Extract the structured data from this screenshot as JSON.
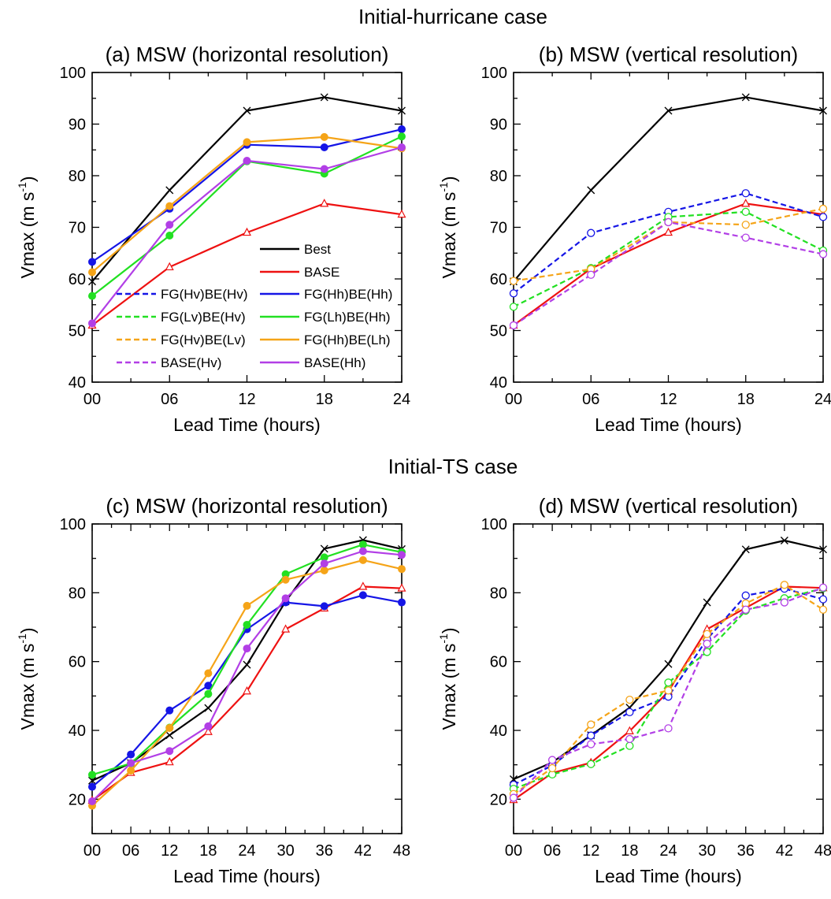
{
  "sections": [
    {
      "title": "Initial-hurricane case"
    },
    {
      "title": "Initial-TS case"
    }
  ],
  "colors": {
    "best": "#000000",
    "base": "#ee1111",
    "blue": "#1515e6",
    "green": "#22e022",
    "orange": "#f5a418",
    "purple": "#b23fe6"
  },
  "legend": {
    "entries": [
      {
        "label": "Best",
        "color": "#000000",
        "dash": false
      },
      {
        "label": "BASE",
        "color": "#ee1111",
        "dash": false
      },
      {
        "label": "FG(Hv)BE(Hv)",
        "color": "#1515e6",
        "dash": true
      },
      {
        "label": "FG(Hh)BE(Hh)",
        "color": "#1515e6",
        "dash": false
      },
      {
        "label": "FG(Lv)BE(Hv)",
        "color": "#22e022",
        "dash": true
      },
      {
        "label": "FG(Lh)BE(Hh)",
        "color": "#22e022",
        "dash": false
      },
      {
        "label": "FG(Hv)BE(Lv)",
        "color": "#f5a418",
        "dash": true
      },
      {
        "label": "FG(Hh)BE(Lh)",
        "color": "#f5a418",
        "dash": false
      },
      {
        "label": "BASE(Hv)",
        "color": "#b23fe6",
        "dash": true
      },
      {
        "label": "BASE(Hh)",
        "color": "#b23fe6",
        "dash": false
      }
    ]
  },
  "chart_data": [
    {
      "type": "line",
      "title": "(a) MSW (horizontal resolution)",
      "xlabel": "Lead Time (hours)",
      "ylabel": "Vmax (m s-1)",
      "ylim": [
        40,
        100
      ],
      "yticks": [
        40,
        50,
        60,
        70,
        80,
        90,
        100
      ],
      "x": [
        0,
        6,
        12,
        18,
        24
      ],
      "xticks": [
        "00",
        "06",
        "12",
        "18",
        "24"
      ],
      "series": [
        {
          "name": "Best",
          "color": "#000000",
          "dash": false,
          "marker": "x",
          "values": [
            59.5,
            77.2,
            92.6,
            95.2,
            92.6
          ]
        },
        {
          "name": "BASE",
          "color": "#ee1111",
          "dash": false,
          "marker": "triangle",
          "values": [
            51.0,
            62.3,
            69.0,
            74.6,
            72.5
          ]
        },
        {
          "name": "FG(Hh)BE(Hh)",
          "color": "#1515e6",
          "dash": false,
          "marker": "dot",
          "values": [
            63.3,
            73.6,
            86.0,
            85.5,
            89.0
          ]
        },
        {
          "name": "FG(Lh)BE(Hh)",
          "color": "#22e022",
          "dash": false,
          "marker": "dot",
          "values": [
            56.7,
            68.4,
            82.8,
            80.4,
            87.6
          ]
        },
        {
          "name": "FG(Hh)BE(Lh)",
          "color": "#f5a418",
          "dash": false,
          "marker": "dot",
          "values": [
            61.3,
            74.1,
            86.5,
            87.5,
            85.3
          ]
        },
        {
          "name": "BASE(Hh)",
          "color": "#b23fe6",
          "dash": false,
          "marker": "dot",
          "values": [
            51.4,
            70.5,
            82.9,
            81.3,
            85.5
          ]
        }
      ]
    },
    {
      "type": "line",
      "title": "(b) MSW (vertical resolution)",
      "xlabel": "Lead Time (hours)",
      "ylabel": "Vmax (m s-1)",
      "ylim": [
        40,
        100
      ],
      "yticks": [
        40,
        50,
        60,
        70,
        80,
        90,
        100
      ],
      "x": [
        0,
        6,
        12,
        18,
        24
      ],
      "xticks": [
        "00",
        "06",
        "12",
        "18",
        "24"
      ],
      "series": [
        {
          "name": "Best",
          "color": "#000000",
          "dash": false,
          "marker": "x",
          "values": [
            59.5,
            77.2,
            92.6,
            95.2,
            92.6
          ]
        },
        {
          "name": "BASE",
          "color": "#ee1111",
          "dash": false,
          "marker": "triangle",
          "values": [
            51.0,
            62.0,
            69.0,
            74.6,
            72.5
          ]
        },
        {
          "name": "FG(Hv)BE(Hv)",
          "color": "#1515e6",
          "dash": true,
          "marker": "circle",
          "values": [
            57.2,
            68.9,
            73.0,
            76.6,
            72.0
          ]
        },
        {
          "name": "FG(Lv)BE(Hv)",
          "color": "#22e022",
          "dash": true,
          "marker": "circle",
          "values": [
            54.6,
            62.1,
            72.0,
            73.0,
            65.5
          ]
        },
        {
          "name": "FG(Hv)BE(Lv)",
          "color": "#f5a418",
          "dash": true,
          "marker": "circle",
          "values": [
            59.6,
            61.9,
            71.0,
            70.5,
            73.6
          ]
        },
        {
          "name": "BASE(Hv)",
          "color": "#b23fe6",
          "dash": true,
          "marker": "circle",
          "values": [
            51.0,
            60.8,
            71.0,
            68.0,
            64.8
          ]
        }
      ]
    },
    {
      "type": "line",
      "title": "(c) MSW (horizontal resolution)",
      "xlabel": "Lead Time (hours)",
      "ylabel": "Vmax (m s-1)",
      "ylim": [
        10,
        100
      ],
      "yticks": [
        20,
        40,
        60,
        80,
        100
      ],
      "x": [
        0,
        6,
        12,
        18,
        24,
        30,
        36,
        42,
        48
      ],
      "xticks": [
        "00",
        "06",
        "12",
        "18",
        "24",
        "30",
        "36",
        "42",
        "48"
      ],
      "series": [
        {
          "name": "Best",
          "color": "#000000",
          "dash": false,
          "marker": "x",
          "values": [
            25.4,
            30.5,
            38.6,
            46.5,
            59.1,
            77.5,
            92.8,
            95.3,
            92.7
          ]
        },
        {
          "name": "BASE",
          "color": "#ee1111",
          "dash": false,
          "marker": "triangle",
          "values": [
            19.6,
            27.7,
            30.8,
            39.6,
            51.4,
            69.4,
            75.5,
            81.8,
            81.3
          ]
        },
        {
          "name": "FG(Hh)BE(Hh)",
          "color": "#1515e6",
          "dash": false,
          "marker": "dot",
          "values": [
            23.6,
            33.0,
            45.8,
            53.0,
            69.4,
            77.2,
            76.1,
            79.3,
            77.2
          ]
        },
        {
          "name": "FG(Lh)BE(Hh)",
          "color": "#22e022",
          "dash": false,
          "marker": "dot",
          "values": [
            27.1,
            30.4,
            40.8,
            50.6,
            70.7,
            85.4,
            90.3,
            94.0,
            91.8
          ]
        },
        {
          "name": "FG(Hh)BE(Lh)",
          "color": "#f5a418",
          "dash": false,
          "marker": "dot",
          "values": [
            18.1,
            28.3,
            40.7,
            56.6,
            76.2,
            83.8,
            86.5,
            89.5,
            86.9
          ]
        },
        {
          "name": "BASE(Hh)",
          "color": "#b23fe6",
          "dash": false,
          "marker": "dot",
          "values": [
            19.4,
            30.5,
            34.0,
            41.2,
            63.8,
            78.4,
            88.5,
            92.1,
            91.0
          ]
        }
      ]
    },
    {
      "type": "line",
      "title": "(d) MSW (vertical resolution)",
      "xlabel": "Lead Time (hours)",
      "ylabel": "Vmax (m s-1)",
      "ylim": [
        10,
        100
      ],
      "yticks": [
        20,
        40,
        60,
        80,
        100
      ],
      "x": [
        0,
        6,
        12,
        18,
        24,
        30,
        36,
        42,
        48
      ],
      "xticks": [
        "00",
        "06",
        "12",
        "18",
        "24",
        "30",
        "36",
        "42",
        "48"
      ],
      "series": [
        {
          "name": "Best",
          "color": "#000000",
          "dash": false,
          "marker": "x",
          "values": [
            25.8,
            30.7,
            38.6,
            46.6,
            59.3,
            77.2,
            92.6,
            95.2,
            92.6
          ]
        },
        {
          "name": "BASE",
          "color": "#ee1111",
          "dash": false,
          "marker": "triangle",
          "values": [
            19.8,
            27.6,
            30.6,
            39.8,
            51.3,
            69.4,
            75.6,
            81.8,
            81.4
          ]
        },
        {
          "name": "FG(Hv)BE(Hv)",
          "color": "#1515e6",
          "dash": true,
          "marker": "circle",
          "values": [
            24.2,
            29.8,
            38.5,
            45.3,
            49.8,
            66.5,
            79.2,
            81.2,
            78.1
          ]
        },
        {
          "name": "FG(Lv)BE(Hv)",
          "color": "#22e022",
          "dash": true,
          "marker": "circle",
          "values": [
            23.0,
            27.2,
            30.2,
            35.5,
            53.9,
            62.8,
            74.8,
            78.4,
            81.3
          ]
        },
        {
          "name": "FG(Hv)BE(Lv)",
          "color": "#f5a418",
          "dash": true,
          "marker": "circle",
          "values": [
            21.5,
            29.0,
            41.7,
            48.9,
            51.6,
            68.0,
            76.9,
            82.3,
            75.1
          ]
        },
        {
          "name": "BASE(Hv)",
          "color": "#b23fe6",
          "dash": true,
          "marker": "circle",
          "values": [
            20.4,
            31.4,
            36.0,
            37.5,
            40.6,
            65.2,
            75.1,
            77.2,
            81.5
          ]
        }
      ]
    }
  ]
}
